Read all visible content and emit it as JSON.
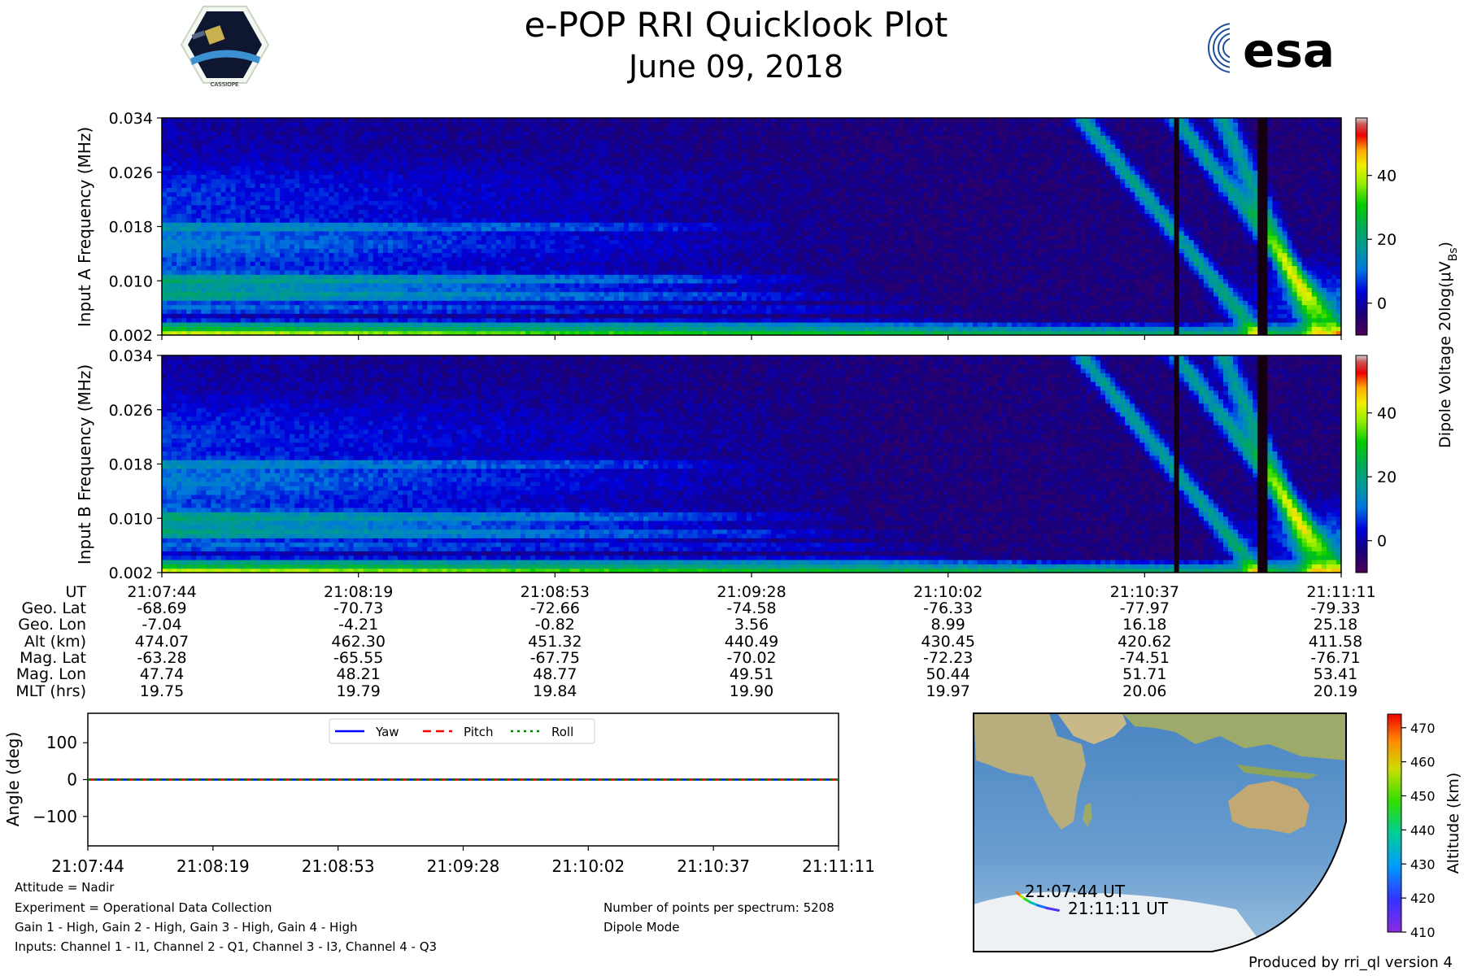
{
  "header": {
    "title": "e-POP RRI Quicklook Plot",
    "date": "June 09, 2018",
    "left_logo": "cassiope-mission-logo",
    "left_logo_text": "CASSIOPE",
    "right_logo": "esa-logo",
    "right_logo_text": "esa"
  },
  "spectrograms": [
    {
      "ylabel": "Input A Frequency (MHz)",
      "yticks": [
        "0.002",
        "0.010",
        "0.018",
        "0.026",
        "0.034"
      ]
    },
    {
      "ylabel": "Input B Frequency (MHz)",
      "yticks": [
        "0.002",
        "0.010",
        "0.018",
        "0.026",
        "0.034"
      ]
    }
  ],
  "colorbar": {
    "label": "Dipole Voltage 20log(μV",
    "label_sub": "Bs",
    "label_close": ")",
    "ticks": [
      "0",
      "20",
      "40"
    ],
    "range": [
      -10,
      58
    ],
    "colormap": "nipy_spectral"
  },
  "ephemeris": {
    "labels": [
      "UT",
      "Geo. Lat",
      "Geo. Lon",
      "Alt (km)",
      "Mag. Lat",
      "Mag. Lon",
      "MLT (hrs)"
    ],
    "columns": [
      [
        "21:07:44",
        "-68.69",
        "-7.04",
        "474.07",
        "-63.28",
        "47.74",
        "19.75"
      ],
      [
        "21:08:19",
        "-70.73",
        "-4.21",
        "462.30",
        "-65.55",
        "48.21",
        "19.79"
      ],
      [
        "21:08:53",
        "-72.66",
        "-0.82",
        "451.32",
        "-67.75",
        "48.77",
        "19.84"
      ],
      [
        "21:09:28",
        "-74.58",
        "3.56",
        "440.49",
        "-70.02",
        "49.51",
        "19.90"
      ],
      [
        "21:10:02",
        "-76.33",
        "8.99",
        "430.45",
        "-72.23",
        "50.44",
        "19.97"
      ],
      [
        "21:10:37",
        "-77.97",
        "16.18",
        "420.62",
        "-74.51",
        "51.71",
        "20.06"
      ],
      [
        "21:11:11",
        "-79.33",
        "25.18",
        "411.58",
        "-76.71",
        "53.41",
        "20.19"
      ]
    ]
  },
  "chart_data": [
    {
      "type": "heatmap",
      "title": "e-POP RRI Quicklook Plot",
      "ylabel": "Input A Frequency (MHz)",
      "x": [
        "21:07:44",
        "21:08:19",
        "21:08:53",
        "21:09:28",
        "21:10:02",
        "21:10:37",
        "21:11:11"
      ],
      "ylim": [
        0.002,
        0.034
      ],
      "yticks": [
        0.002,
        0.01,
        0.018,
        0.026,
        0.034
      ],
      "zlabel": "Dipole Voltage 20log(μV_Bs)",
      "zlim": [
        -10,
        58
      ]
    },
    {
      "type": "heatmap",
      "ylabel": "Input B Frequency (MHz)",
      "x": [
        "21:07:44",
        "21:08:19",
        "21:08:53",
        "21:09:28",
        "21:10:02",
        "21:10:37",
        "21:11:11"
      ],
      "ylim": [
        0.002,
        0.034
      ],
      "yticks": [
        0.002,
        0.01,
        0.018,
        0.026,
        0.034
      ],
      "zlabel": "Dipole Voltage 20log(μV_Bs)",
      "zlim": [
        -10,
        58
      ]
    },
    {
      "type": "line",
      "ylabel": "Angle (deg)",
      "x": [
        "21:07:44",
        "21:08:19",
        "21:08:53",
        "21:09:28",
        "21:10:02",
        "21:10:37",
        "21:11:11"
      ],
      "ylim": [
        -180,
        180
      ],
      "yticks": [
        -100,
        0,
        100
      ],
      "ytick_labels": [
        "−100",
        "0",
        "100"
      ],
      "legend": "top-center",
      "series": [
        {
          "name": "Yaw",
          "values": [
            0,
            0,
            0,
            0,
            0,
            0,
            0
          ],
          "color": "#0000ff",
          "style": "solid"
        },
        {
          "name": "Pitch",
          "values": [
            0,
            0,
            0,
            0,
            0,
            0,
            0
          ],
          "color": "#ff0000",
          "style": "dashed"
        },
        {
          "name": "Roll",
          "values": [
            0,
            0,
            0,
            0,
            0,
            0,
            0
          ],
          "color": "#008000",
          "style": "dotted"
        }
      ]
    },
    {
      "type": "scatter",
      "title": "",
      "zlabel": "Altitude (km)",
      "zlim": [
        410,
        474
      ],
      "zticks": [
        "410",
        "420",
        "430",
        "440",
        "450",
        "460",
        "470"
      ],
      "track_start_label": "21:07:44 UT",
      "track_end_label": "21:11:11 UT",
      "lat": [
        -68.69,
        -70.73,
        -72.66,
        -74.58,
        -76.33,
        -77.97,
        -79.33
      ],
      "lon": [
        -7.04,
        -4.21,
        -0.82,
        3.56,
        8.99,
        16.18,
        25.18
      ],
      "alt": [
        474.07,
        462.3,
        451.32,
        440.49,
        430.45,
        420.62,
        411.58
      ]
    }
  ],
  "footer": {
    "attitude": "Attitude = Nadir",
    "experiment": "Experiment = Operational Data Collection",
    "gains": "Gain 1 - High, Gain 2 - High, Gain 3 - High, Gain 4 - High",
    "inputs": "Inputs: Channel 1 - I1, Channel 2 - Q1, Channel 3 - I3, Channel 4 - Q3",
    "points": "Number of points per spectrum: 5208",
    "mode": "Dipole Mode",
    "produced_by": "Produced by rri_ql version 4"
  }
}
